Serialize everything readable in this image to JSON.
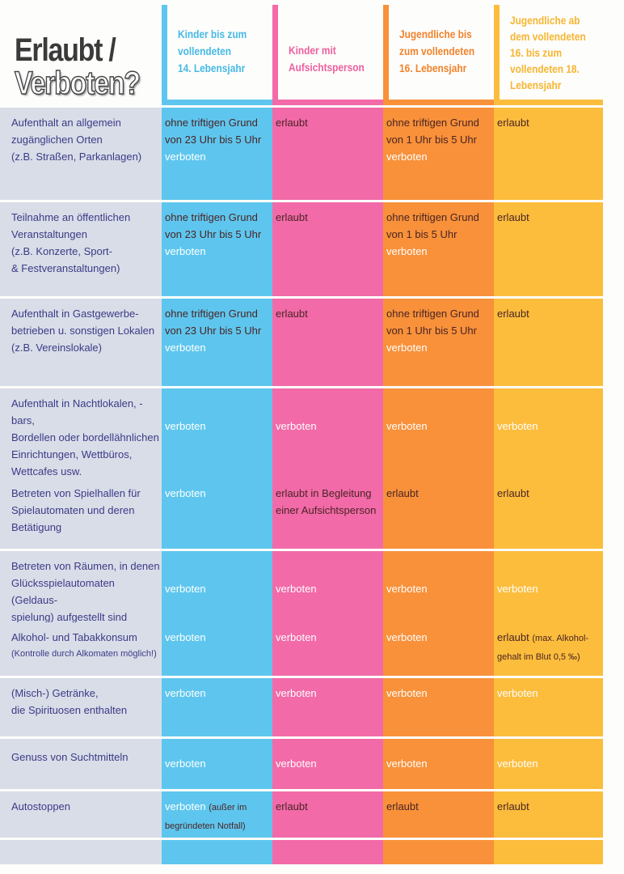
{
  "title": {
    "line1": "Erlaubt /",
    "line2": "Verboten?"
  },
  "columns": [
    {
      "label": "Kinder bis zum\nvollendeten\n14. Lebensjahr",
      "color": "#5ec6ee"
    },
    {
      "label": "Kinder mit\nAufsichtsperson",
      "color": "#f26aa8"
    },
    {
      "label": "Jugendliche bis\nzum vollendeten\n16. Lebensjahr",
      "color": "#f8913a"
    },
    {
      "label": "Jugendliche ab\ndem vollendeten\n16. bis zum\nvollendeten 18.\nLebensjahr",
      "color": "#fcbd3d"
    }
  ],
  "rows": [
    {
      "label": "Aufenthalt an allgemein\nzugänglichen Orten\n(z.B. Straßen, Parkanlagen)",
      "cells": [
        [
          {
            "text": "ohne triftigen Grund von 23 Uhr bis 5 Uhr ",
            "tone": "ok"
          },
          {
            "text": "verboten",
            "tone": "no"
          }
        ],
        [
          {
            "text": "erlaubt",
            "tone": "ok"
          }
        ],
        [
          {
            "text": "ohne triftigen Grund von 1 Uhr bis 5 Uhr ",
            "tone": "ok"
          },
          {
            "text": "verboten",
            "tone": "no"
          }
        ],
        [
          {
            "text": "erlaubt",
            "tone": "ok"
          }
        ]
      ]
    },
    {
      "label": "Teilnahme an öffentlichen\nVeranstaltungen\n(z.B. Konzerte, Sport-\n& Festveranstaltungen)",
      "cells": [
        [
          {
            "text": "ohne triftigen Grund von 23 Uhr bis 5 Uhr ",
            "tone": "ok"
          },
          {
            "text": "verboten",
            "tone": "no"
          }
        ],
        [
          {
            "text": "erlaubt",
            "tone": "ok"
          }
        ],
        [
          {
            "text": "ohne triftigen Grund von 1 bis 5 Uhr ",
            "tone": "ok"
          },
          {
            "text": "verboten",
            "tone": "no"
          }
        ],
        [
          {
            "text": "erlaubt",
            "tone": "ok"
          }
        ]
      ]
    },
    {
      "label": "Aufenthalt in Gastgewerbe-\nbetrieben u. sonstigen Lokalen\n(z.B. Vereinslokale)",
      "cells": [
        [
          {
            "text": "ohne triftigen Grund von 23 Uhr bis 5 Uhr ",
            "tone": "ok"
          },
          {
            "text": "verboten",
            "tone": "no"
          }
        ],
        [
          {
            "text": "erlaubt",
            "tone": "ok"
          }
        ],
        [
          {
            "text": "ohne triftigen Grund von 1 Uhr bis 5 Uhr ",
            "tone": "ok"
          },
          {
            "text": "verboten",
            "tone": "no"
          }
        ],
        [
          {
            "text": "erlaubt",
            "tone": "ok"
          }
        ]
      ]
    },
    {
      "label": "Aufenthalt in Nachtlokalen, -bars,\nBordellen oder bordellähnlichen\nEinrichtungen, Wettbüros,\nWettcafes usw.",
      "cells": [
        [
          {
            "text": "verboten",
            "tone": "no"
          }
        ],
        [
          {
            "text": "verboten",
            "tone": "no"
          }
        ],
        [
          {
            "text": "verboten",
            "tone": "no"
          }
        ],
        [
          {
            "text": "verboten",
            "tone": "no"
          }
        ]
      ]
    },
    {
      "label": "Betreten von Spielhallen für\nSpielautomaten und deren\nBetätigung",
      "cells": [
        [
          {
            "text": "verboten",
            "tone": "no"
          }
        ],
        [
          {
            "text": "erlaubt in Begleitung einer Aufsichtsperson",
            "tone": "ok"
          }
        ],
        [
          {
            "text": "erlaubt",
            "tone": "ok"
          }
        ],
        [
          {
            "text": "erlaubt",
            "tone": "ok"
          }
        ]
      ]
    },
    {
      "label": "Betreten von Räumen, in denen\nGlücksspielautomaten (Geldaus-\nspielung) aufgestellt sind",
      "cells": [
        [
          {
            "text": "verboten",
            "tone": "no"
          }
        ],
        [
          {
            "text": "verboten",
            "tone": "no"
          }
        ],
        [
          {
            "text": "verboten",
            "tone": "no"
          }
        ],
        [
          {
            "text": "verboten",
            "tone": "no"
          }
        ]
      ]
    },
    {
      "label": "Alkohol- und Tabakkonsum",
      "note": "(Kontrolle durch Alkomaten möglich!)",
      "cells": [
        [
          {
            "text": "verboten",
            "tone": "no"
          }
        ],
        [
          {
            "text": "verboten",
            "tone": "no"
          }
        ],
        [
          {
            "text": "verboten",
            "tone": "no"
          }
        ],
        [
          {
            "text": "erlaubt ",
            "tone": "ok"
          },
          {
            "text": "(max. Alkohol-gehalt im Blut 0,5 ‰)",
            "tone": "ok small"
          }
        ]
      ]
    },
    {
      "label": "(Misch-) Getränke,\ndie Spirituosen enthalten",
      "cells": [
        [
          {
            "text": "verboten",
            "tone": "no"
          }
        ],
        [
          {
            "text": "verboten",
            "tone": "no"
          }
        ],
        [
          {
            "text": "verboten",
            "tone": "no"
          }
        ],
        [
          {
            "text": "verboten",
            "tone": "no"
          }
        ]
      ]
    },
    {
      "label": "Genuss von Suchtmitteln",
      "cells": [
        [
          {
            "text": "verboten",
            "tone": "no"
          }
        ],
        [
          {
            "text": "verboten",
            "tone": "no"
          }
        ],
        [
          {
            "text": "verboten",
            "tone": "no"
          }
        ],
        [
          {
            "text": "verboten",
            "tone": "no"
          }
        ]
      ]
    },
    {
      "label": "Autostoppen",
      "cells": [
        [
          {
            "text": "verboten ",
            "tone": "no"
          },
          {
            "text": "(außer im begründeten Notfall)",
            "tone": "ok small"
          }
        ],
        [
          {
            "text": "erlaubt",
            "tone": "ok"
          }
        ],
        [
          {
            "text": "erlaubt",
            "tone": "ok"
          }
        ],
        [
          {
            "text": "erlaubt",
            "tone": "ok"
          }
        ]
      ]
    },
    {
      "label": "",
      "cells": [
        [],
        [],
        [],
        []
      ]
    }
  ]
}
